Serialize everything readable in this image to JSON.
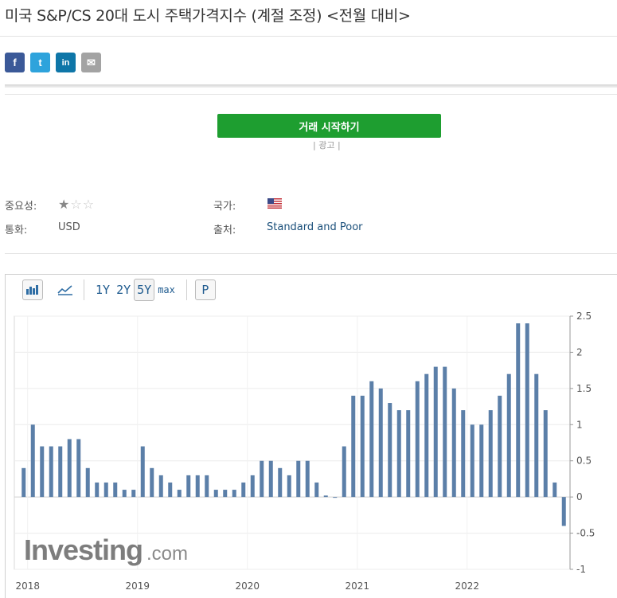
{
  "title": "미국 S&P/CS 20대 도시 주택가격지수 (계절 조정) <전월 대비>",
  "social": {
    "facebook": "f",
    "twitter": "t",
    "linkedin": "in",
    "mail": "✉"
  },
  "trade_button": "거래 시작하기",
  "ad_label": "| 광고 |",
  "info": {
    "importance_label": "중요성:",
    "importance_stars": 1,
    "importance_max": 3,
    "country_label": "국가:",
    "currency_label": "통화:",
    "currency_value": "USD",
    "source_label": "출처:",
    "source_value": "Standard and Poor"
  },
  "toolbar": {
    "ranges": [
      "1Y",
      "2Y",
      "5Y"
    ],
    "active_range": "5Y",
    "max_label": "max",
    "p_label": "P"
  },
  "watermark": {
    "main": "Investing",
    "suffix": ".com"
  },
  "chart_data": {
    "type": "bar",
    "color": "#5b7fa8",
    "y_ticks": [
      2.5,
      2,
      1.5,
      1,
      0.5,
      0,
      -0.5,
      -1
    ],
    "y_tick_labels": [
      "2.5",
      "2",
      "1.5",
      "1",
      "0.5",
      "0",
      "-0.5",
      "-1"
    ],
    "ylim": [
      -1,
      2.5
    ],
    "x_tick_labels": [
      "2018",
      "2019",
      "2020",
      "2021",
      "2022"
    ],
    "x_tick_index": [
      2,
      14,
      26,
      38,
      50
    ],
    "values": [
      0.4,
      1.0,
      0.7,
      0.7,
      0.7,
      0.8,
      0.8,
      0.4,
      0.2,
      0.2,
      0.2,
      0.1,
      0.1,
      0.7,
      0.4,
      0.3,
      0.2,
      0.1,
      0.3,
      0.3,
      0.3,
      0.1,
      0.1,
      0.1,
      0.2,
      0.3,
      0.5,
      0.5,
      0.4,
      0.3,
      0.5,
      0.5,
      0.2,
      0.02,
      0.0,
      0.7,
      1.4,
      1.4,
      1.6,
      1.5,
      1.3,
      1.2,
      1.2,
      1.6,
      1.7,
      1.8,
      1.8,
      1.5,
      1.2,
      1.0,
      1.0,
      1.2,
      1.4,
      1.7,
      2.4,
      2.4,
      1.7,
      1.2,
      0.2,
      -0.4
    ]
  }
}
